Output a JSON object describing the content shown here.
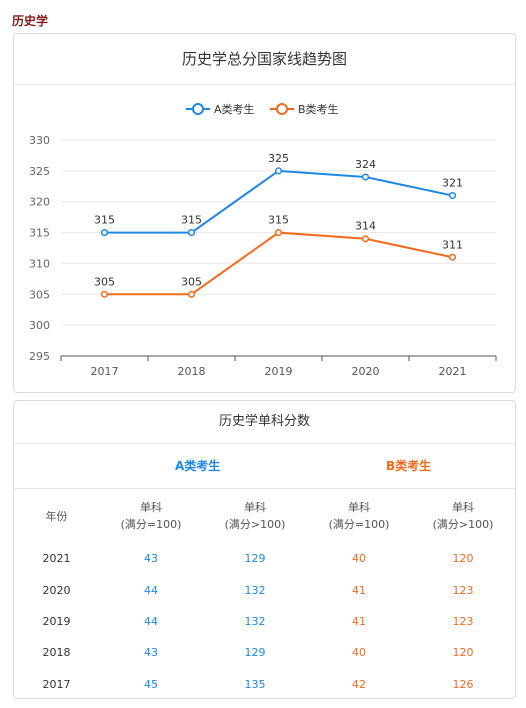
{
  "page": {
    "heading": "历史学"
  },
  "chart_data": {
    "type": "line",
    "title": "历史学总分国家线趋势图",
    "categories": [
      "2017",
      "2018",
      "2019",
      "2020",
      "2021"
    ],
    "series": [
      {
        "name": "A类考生",
        "values": [
          315,
          315,
          325,
          324,
          321
        ],
        "color": "#1e88e5"
      },
      {
        "name": "B类考生",
        "values": [
          305,
          305,
          315,
          314,
          311
        ],
        "color": "#f26b1d"
      }
    ],
    "yticks": [
      "295",
      "300",
      "305",
      "310",
      "315",
      "320",
      "325",
      "330"
    ],
    "ylim": [
      295,
      330
    ],
    "legend": "top-center",
    "grid": true
  },
  "table": {
    "title": "历史学单科分数",
    "group_a": "A类考生",
    "group_b": "B类考生",
    "headers": [
      {
        "line1": "年份",
        "line2": ""
      },
      {
        "line1": "单科",
        "line2": "(满分=100)"
      },
      {
        "line1": "单科",
        "line2": "(满分>100)"
      },
      {
        "line1": "单科",
        "line2": "(满分=100)"
      },
      {
        "line1": "单科",
        "line2": "(满分>100)"
      }
    ],
    "rows": [
      {
        "year": "2021",
        "a1": "43",
        "a2": "129",
        "b1": "40",
        "b2": "120"
      },
      {
        "year": "2020",
        "a1": "44",
        "a2": "132",
        "b1": "41",
        "b2": "123"
      },
      {
        "year": "2019",
        "a1": "44",
        "a2": "132",
        "b1": "41",
        "b2": "123"
      },
      {
        "year": "2018",
        "a1": "43",
        "a2": "129",
        "b1": "40",
        "b2": "120"
      },
      {
        "year": "2017",
        "a1": "45",
        "a2": "135",
        "b1": "42",
        "b2": "126"
      }
    ]
  }
}
